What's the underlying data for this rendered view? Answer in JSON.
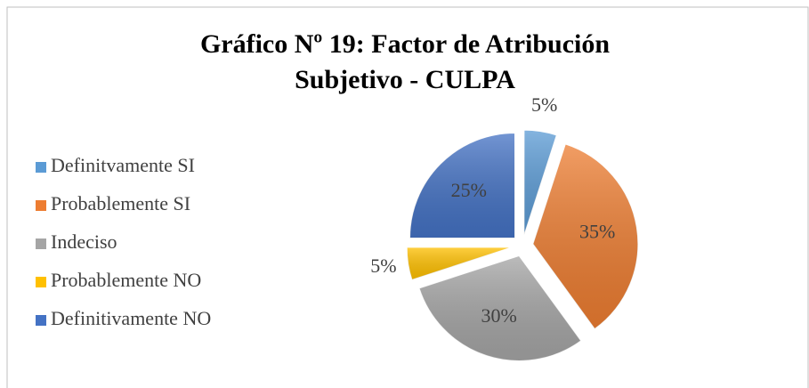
{
  "chart_data": {
    "type": "pie",
    "title": "Gráfico Nº 19: Factor de Atribución Subjetivo - CULPA",
    "categories": [
      "Definitvamente SI",
      "Probablemente SI",
      "Indeciso",
      "Probablemente NO",
      "Definitivamente NO"
    ],
    "values": [
      5,
      35,
      30,
      5,
      25
    ],
    "value_labels": [
      "5%",
      "35%",
      "30%",
      "5%",
      "25%"
    ],
    "colors": [
      "#5b9bd5",
      "#ed7d31",
      "#a5a5a5",
      "#ffc000",
      "#4472c4"
    ],
    "legend": "left"
  }
}
